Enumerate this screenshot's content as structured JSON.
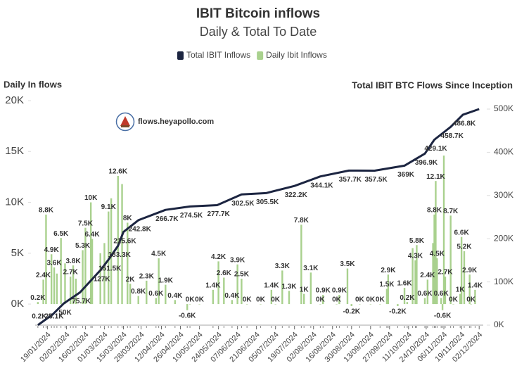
{
  "chart_data": {
    "type": "combo",
    "title": "IBIT Bitcoin inflows",
    "subtitle": "Daily & Total To Date",
    "y_label": "Daily In flows",
    "y2_label": "Total IBIT BTC Flows Since Inception",
    "watermark": "flows.heyapollo.com",
    "legend": "top",
    "xlim": [
      "10/01/2024",
      "05/12/2024"
    ],
    "xticks": [
      "19/01/2024",
      "02/02/2024",
      "16/02/2024",
      "01/03/2024",
      "15/03/2024",
      "28/03/2024",
      "12/04/2024",
      "26/04/2024",
      "10/05/2024",
      "24/05/2024",
      "07/06/2024",
      "21/06/2024",
      "05/07/2024",
      "19/07/2024",
      "02/08/2024",
      "16/08/2024",
      "30/08/2024",
      "13/09/2024",
      "27/09/2024",
      "11/10/2024",
      "24/10/2024",
      "06/11/2024",
      "19/11/2024",
      "02/12/2024"
    ],
    "ylim": [
      -2070,
      20000
    ],
    "yticks": [
      {
        "value": 0,
        "label": "0K"
      },
      {
        "value": 5000,
        "label": "5K"
      },
      {
        "value": 10000,
        "label": "10K"
      },
      {
        "value": 15000,
        "label": "15K"
      },
      {
        "value": 20000,
        "label": "20K"
      }
    ],
    "y2lim": [
      0,
      519500
    ],
    "y2ticks": [
      {
        "value": 0,
        "label": "0K"
      },
      {
        "value": 100000,
        "label": "100K"
      },
      {
        "value": 200000,
        "label": "200K"
      },
      {
        "value": 300000,
        "label": "300K"
      },
      {
        "value": 400000,
        "label": "400K"
      },
      {
        "value": 500000,
        "label": "500K"
      }
    ],
    "series": [
      {
        "name": "Total IBIT Inflows",
        "type": "line",
        "axis": "y2",
        "color": "#1c2541",
        "x": [
          "12/01/2024",
          "23/01/2024",
          "31/01/2024",
          "12/02/2024",
          "27/02/2024",
          "04/03/2024",
          "11/03/2024",
          "15/03/2024",
          "26/03/2024",
          "15/04/2024",
          "03/05/2024",
          "23/05/2024",
          "10/06/2024",
          "28/06/2024",
          "19/07/2024",
          "07/08/2024",
          "28/08/2024",
          "16/09/2024",
          "08/10/2024",
          "23/10/2024",
          "30/10/2024",
          "11/11/2024",
          "20/11/2024",
          "02/12/2024"
        ],
        "values": [
          200,
          25100,
          50000,
          75700,
          127000,
          151500,
          183300,
          215600,
          242800,
          266700,
          274500,
          277700,
          302500,
          305500,
          322200,
          344100,
          357700,
          357500,
          369000,
          396900,
          429100,
          458700,
          486800,
          500000
        ],
        "value_labels": [
          "0.2K",
          "25.1K",
          "50K",
          "75.7K",
          "127K",
          "151.5K",
          "183.3K",
          "215.6K",
          "242.8K",
          "266.7K",
          "274.5K",
          "277.7K",
          "302.5K",
          "305.5K",
          "322.2K",
          "344.1K",
          "357.7K",
          "357.5K",
          "369K",
          "396.9K",
          "429.1K",
          "458.7K",
          "486.8K",
          null
        ]
      },
      {
        "name": "Daily Ibit Inflows",
        "type": "bar",
        "color": "#a9d18e",
        "x": [
          "12/01/2024",
          "16/01/2024",
          "18/01/2024",
          "22/01/2024",
          "24/01/2024",
          "26/01/2024",
          "29/01/2024",
          "01/02/2024",
          "05/02/2024",
          "07/02/2024",
          "09/02/2024",
          "14/02/2024",
          "16/02/2024",
          "20/02/2024",
          "21/02/2024",
          "27/02/2024",
          "01/03/2024",
          "04/03/2024",
          "06/03/2024",
          "11/03/2024",
          "14/03/2024",
          "18/03/2024",
          "20/03/2024",
          "26/03/2024",
          "01/04/2024",
          "08/04/2024",
          "10/04/2024",
          "15/04/2024",
          "22/04/2024",
          "01/05/2024",
          "03/05/2024",
          "10/05/2024",
          "20/05/2024",
          "24/05/2024",
          "28/05/2024",
          "03/06/2024",
          "07/06/2024",
          "10/06/2024",
          "14/06/2024",
          "24/06/2024",
          "02/07/2024",
          "05/07/2024",
          "10/07/2024",
          "15/07/2024",
          "24/07/2024",
          "26/07/2024",
          "31/07/2024",
          "07/08/2024",
          "09/08/2024",
          "19/08/2024",
          "21/08/2024",
          "27/08/2024",
          "30/08/2024",
          "05/09/2024",
          "13/09/2024",
          "20/09/2024",
          "25/09/2024",
          "26/09/2024",
          "03/10/2024",
          "08/10/2024",
          "10/10/2024",
          "14/10/2024",
          "16/10/2024",
          "17/10/2024",
          "23/10/2024",
          "25/10/2024",
          "29/10/2024",
          "30/10/2024",
          "31/10/2024",
          "01/11/2024",
          "04/11/2024",
          "05/11/2024",
          "06/11/2024",
          "07/11/2024",
          "11/11/2024",
          "13/11/2024",
          "18/11/2024",
          "19/11/2024",
          "21/11/2024",
          "25/11/2024",
          "26/11/2024",
          "29/11/2024"
        ],
        "values": [
          200,
          2400,
          8800,
          4900,
          3600,
          3000,
          6500,
          4000,
          2700,
          3800,
          2500,
          5300,
          7500,
          10000,
          6400,
          5000,
          6000,
          9100,
          10400,
          12600,
          11800,
          8000,
          2000,
          800,
          2300,
          600,
          4500,
          1900,
          400,
          -600,
          0,
          0,
          1400,
          4200,
          2600,
          400,
          3900,
          2500,
          0,
          0,
          1400,
          0,
          3300,
          1300,
          7800,
          1000,
          3100,
          0,
          900,
          0,
          900,
          3500,
          -200,
          0,
          0,
          0,
          1500,
          2900,
          -200,
          1600,
          200,
          5500,
          4300,
          5800,
          600,
          2400,
          6000,
          8800,
          12100,
          4500,
          600,
          -600,
          14600,
          2700,
          8700,
          0,
          1000,
          6600,
          5200,
          2900,
          0,
          1400
        ],
        "value_labels": [
          "0.2K",
          "2.4K",
          "8.8K",
          "4.9K",
          "3.6K",
          null,
          "6.5K",
          null,
          "2.7K",
          "3.8K",
          null,
          "5.3K",
          "7.5K",
          "10K",
          "6.4K",
          null,
          null,
          "9.1K",
          null,
          "12.6K",
          null,
          "8K",
          "2K",
          "0.8K",
          "2.3K",
          "0.6K",
          "4.5K",
          "1.9K",
          "0.4K",
          "-0.6K",
          "0K",
          "0K",
          "1.4K",
          "4.2K",
          "2.6K",
          "0.4K",
          "3.9K",
          "2.5K",
          "0K",
          "0K",
          "1.4K",
          "0K",
          "3.3K",
          "1.3K",
          "7.8K",
          "1K",
          "3.1K",
          "0K",
          "0.9K",
          "0K",
          "0.9K",
          "3.5K",
          "-0.2K",
          "0K",
          "0K",
          "0K",
          "1.5K",
          "2.9K",
          "-0.2K",
          "1.6K",
          "0.2K",
          null,
          "4.3K",
          "5.8K",
          "0.6K",
          "2.4K",
          null,
          "8.8K",
          "12.1K",
          "4.5K",
          "0.6K",
          "-0.6K",
          null,
          "2.7K",
          "8.7K",
          "0K",
          "1K",
          "6.6K",
          "5.2K",
          "2.9K",
          "0K",
          "1.4K"
        ]
      }
    ]
  }
}
